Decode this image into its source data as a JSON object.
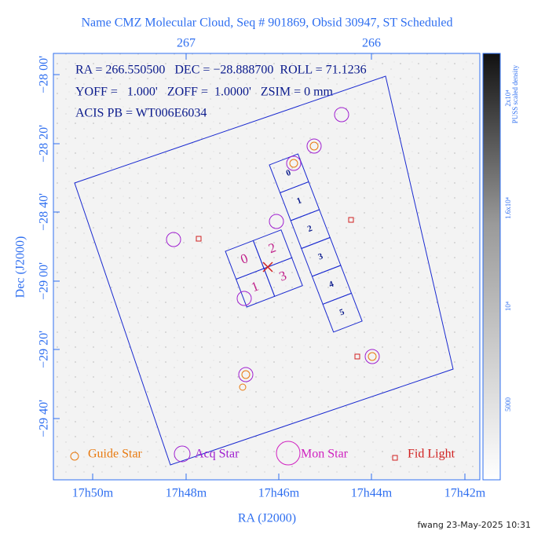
{
  "header": {
    "title": "Name CMZ Molecular Cloud, Seq # 901869, Obsid 30947, ST Scheduled"
  },
  "info": {
    "lines": [
      "RA = 266.550500   DEC = −28.888700  ROLL = 71.1236",
      "YOFF =   1.000'   ZOFF =  1.0000'   ZSIM = 0 mm",
      "ACIS PB = WT006E6034"
    ]
  },
  "axes": {
    "x": {
      "label": "RA (J2000)",
      "ticks_bottom": [
        "17h50m",
        "17h48m",
        "17h46m",
        "17h44m",
        "17h42m"
      ],
      "ticks_top": [
        "267",
        "266"
      ]
    },
    "y": {
      "label": "Dec (J2000)",
      "ticks": [
        "−28 00'",
        "−28 20'",
        "−28 40'",
        "−29 00'",
        "−29 20'",
        "−29 40'"
      ]
    }
  },
  "colorbar": {
    "label": "PUSS scaled density",
    "ticks": [
      "2x10⁴",
      "1.6x10⁴",
      "10⁴",
      "5000"
    ]
  },
  "chips": {
    "acis_i": [
      "0",
      "2",
      "1",
      "3"
    ],
    "acis_s": [
      "0",
      "1",
      "2",
      "3",
      "4",
      "5"
    ]
  },
  "legend": {
    "items": [
      "Guide Star",
      "Acq Star",
      "Mon Star",
      "Fid Light"
    ]
  },
  "footer": {
    "stamp": "fwang 23-May-2025 10:31"
  }
}
